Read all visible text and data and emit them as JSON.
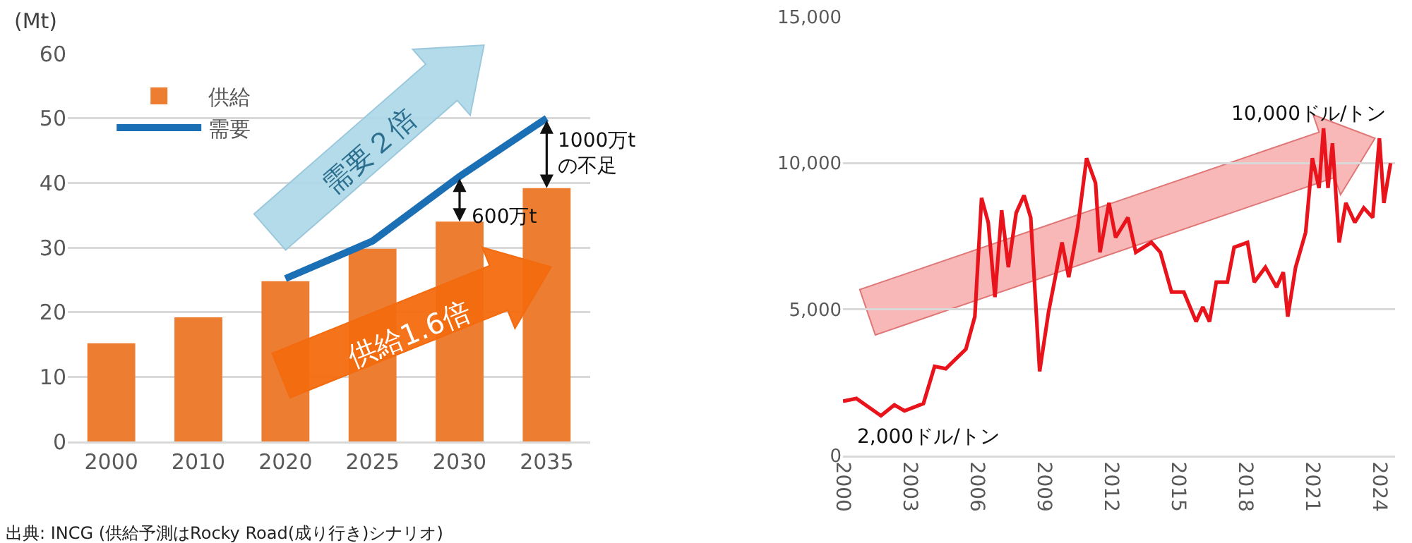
{
  "chart_data": [
    {
      "type": "bar",
      "ylabel": "(Mt)",
      "categories": [
        "2000",
        "2010",
        "2020",
        "2025",
        "2030",
        "2035"
      ],
      "series": [
        {
          "name": "供給",
          "color": "#ed7d31",
          "values": [
            15.2,
            19.2,
            24.8,
            29.8,
            34,
            39.2
          ]
        },
        {
          "name": "需要",
          "type": "line",
          "color": "#1b6fb5",
          "values": [
            null,
            null,
            25.2,
            31,
            41,
            50
          ]
        }
      ],
      "ylim": [
        0,
        60
      ],
      "yticks": [
        0,
        10,
        20,
        30,
        40,
        50,
        60
      ],
      "grid": "y",
      "legend": "top left",
      "annotations": [
        "需要２倍",
        "供給1.6倍",
        {
          "text": "1000万t\nの不足",
          "x": "2035",
          "y": 50
        },
        {
          "text": "600万t",
          "x": "2030",
          "y": 41
        },
        "出典: INCG (供給予測はRocky Road(成り行き)シナリオ)"
      ]
    },
    {
      "type": "line",
      "x": [
        2000,
        2000.6,
        2001.7,
        2002.3,
        2002.75,
        2003.6,
        2004.1,
        2004.6,
        2005.5,
        2005.9,
        2006.2,
        2006.5,
        2006.8,
        2007.1,
        2007.4,
        2007.75,
        2008.1,
        2008.4,
        2008.8,
        2009.2,
        2009.8,
        2010.1,
        2010.5,
        2010.9,
        2011.3,
        2011.5,
        2011.9,
        2012.2,
        2012.75,
        2013.1,
        2013.8,
        2014.2,
        2014.7,
        2015.25,
        2015.8,
        2016.1,
        2016.4,
        2016.7,
        2017.2,
        2017.5,
        2018.1,
        2018.4,
        2018.9,
        2019.4,
        2019.7,
        2019.9,
        2020.25,
        2020.7,
        2021,
        2021.3,
        2021.5,
        2021.7,
        2021.9,
        2022.2,
        2022.5,
        2022.9,
        2023.3,
        2023.7,
        2024,
        2024.2,
        2024.5
      ],
      "series": [
        {
          "color": "#e8131b",
          "values": [
            1860,
            1950,
            1360,
            1730,
            1530,
            1780,
            3050,
            2970,
            3640,
            4750,
            8810,
            7970,
            5420,
            8390,
            6440,
            8300,
            8900,
            8140,
            2880,
            4920,
            7290,
            6100,
            7800,
            10170,
            9320,
            6950,
            8640,
            7460,
            8140,
            6950,
            7290,
            6950,
            5590,
            5590,
            4580,
            5080,
            4580,
            5930,
            5930,
            7120,
            7290,
            5930,
            6440,
            5760,
            6270,
            4750,
            6440,
            7630,
            10170,
            9150,
            11190,
            9150,
            10680,
            7290,
            8640,
            7970,
            8470,
            8140,
            10850,
            8640,
            10000
          ]
        }
      ],
      "xlim": [
        2000,
        2024.7
      ],
      "xticks": [
        2000,
        2003,
        2006,
        2009,
        2012,
        2015,
        2018,
        2021,
        2024
      ],
      "ylim": [
        0,
        15000
      ],
      "yticks": [
        0,
        {
          "value": 5000,
          "label": "5,000"
        },
        {
          "value": 10000,
          "label": "10,000"
        },
        {
          "value": 15000,
          "label": "15,000"
        }
      ],
      "grid": "y",
      "annotations": [
        "10,000ドル/トン",
        "2,000ドル/トン"
      ]
    }
  ]
}
